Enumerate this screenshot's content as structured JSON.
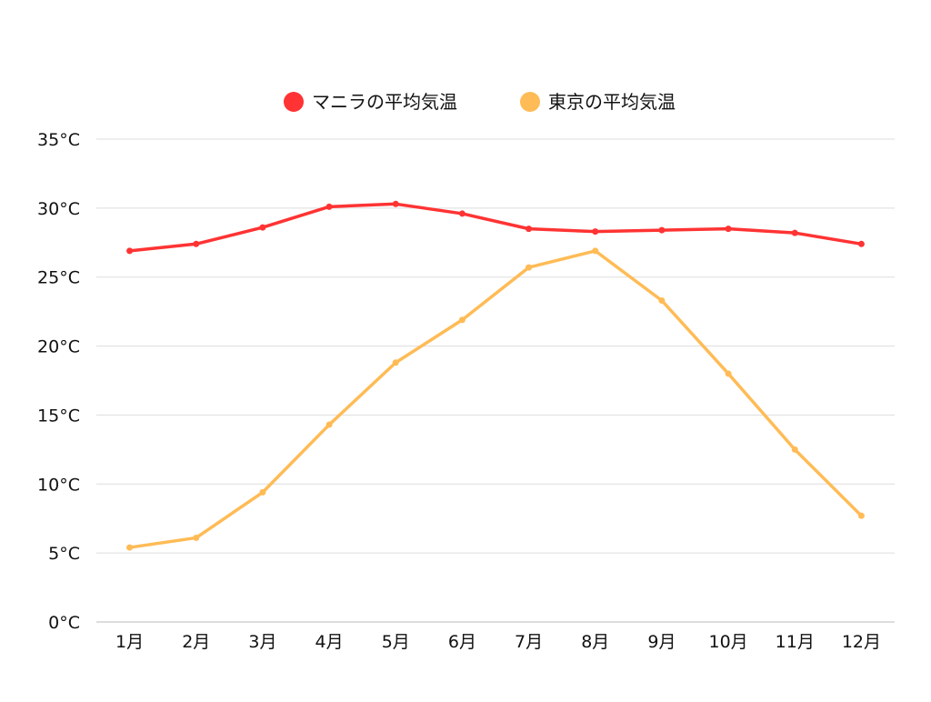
{
  "chart_data": {
    "type": "line",
    "title": "",
    "xlabel": "",
    "ylabel": "",
    "categories": [
      "1月",
      "2月",
      "3月",
      "4月",
      "5月",
      "6月",
      "7月",
      "8月",
      "9月",
      "10月",
      "11月",
      "12月"
    ],
    "ylim": [
      0,
      35
    ],
    "yticks": [
      0,
      5,
      10,
      15,
      20,
      25,
      30,
      35
    ],
    "ytick_suffix": "°C",
    "grid": true,
    "legend_position": "top",
    "series": [
      {
        "name": "マニラの平均気温",
        "color": "#ff3333",
        "values": [
          26.9,
          27.4,
          28.6,
          30.1,
          30.3,
          29.6,
          28.5,
          28.3,
          28.4,
          28.5,
          28.2,
          27.4
        ]
      },
      {
        "name": "東京の平均気温",
        "color": "#ffbb55",
        "values": [
          5.4,
          6.1,
          9.4,
          14.3,
          18.8,
          21.9,
          25.7,
          26.9,
          23.3,
          18.0,
          12.5,
          7.7
        ]
      }
    ]
  }
}
